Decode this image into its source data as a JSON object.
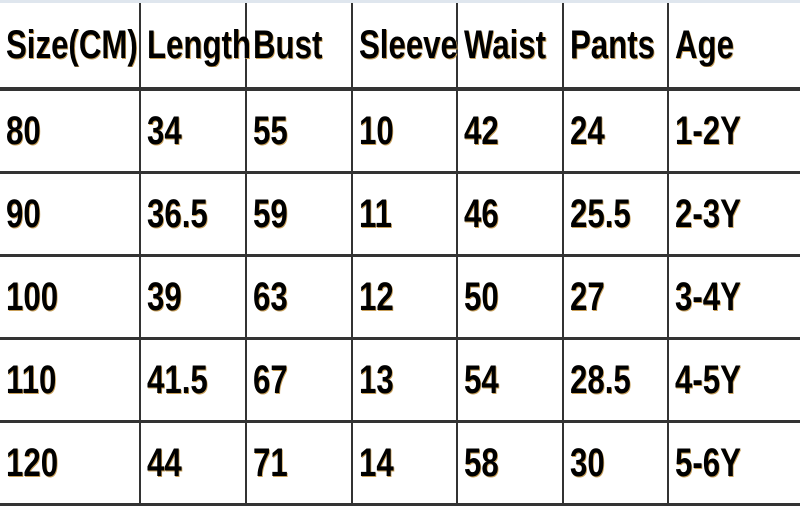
{
  "table": {
    "headers": [
      "Size(CM)",
      "Length",
      "Bust",
      "Sleeve",
      "Waist",
      "Pants",
      "Age"
    ],
    "rows": [
      [
        "80",
        "34",
        "55",
        "10",
        "42",
        "24",
        "1-2Y"
      ],
      [
        "90",
        "36.5",
        "59",
        "11",
        "46",
        "25.5",
        "2-3Y"
      ],
      [
        "100",
        "39",
        "63",
        "12",
        "50",
        "27",
        "3-4Y"
      ],
      [
        "110",
        "41.5",
        "67",
        "13",
        "54",
        "28.5",
        "4-5Y"
      ],
      [
        "120",
        "44",
        "71",
        "14",
        "58",
        "30",
        "5-6Y"
      ]
    ]
  }
}
